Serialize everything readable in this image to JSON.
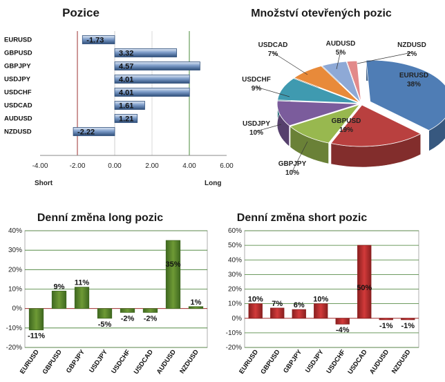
{
  "chart_data": [
    {
      "type": "bar",
      "orientation": "horizontal",
      "title": "Pozice",
      "categories": [
        "EURUSD",
        "GBPUSD",
        "GBPJPY",
        "USDJPY",
        "USDCHF",
        "USDCAD",
        "AUDUSD",
        "NZDUSD"
      ],
      "values": [
        -1.73,
        3.32,
        4.57,
        4.01,
        4.01,
        1.61,
        1.21,
        -2.22
      ],
      "value_labels": [
        "-1.73",
        "3.32",
        "4.57",
        "4.01",
        "4.01",
        "1.61",
        "1.21",
        "-2.22"
      ],
      "xlim": [
        -4,
        6
      ],
      "xticks": [
        "-4.00",
        "-2.00",
        "0.00",
        "2.00",
        "4.00",
        "6.00"
      ],
      "left_label": "Short",
      "right_label": "Long",
      "colors": {
        "bar": "#7d9cc9",
        "bar_dark": "#2f4f7a",
        "line_red": "#9b3030",
        "line_green": "#4a8a3a"
      }
    },
    {
      "type": "pie",
      "title": "Množství otevřených pozic",
      "labels": [
        "EURUSD",
        "GBPUSD",
        "GBPJPY",
        "USDJPY",
        "USDCHF",
        "USDCAD",
        "AUDUSD",
        "NZDUSD"
      ],
      "values": [
        38,
        19,
        10,
        10,
        9,
        7,
        5,
        2
      ],
      "value_labels": [
        "38%",
        "19%",
        "10%",
        "10%",
        "9%",
        "7%",
        "5%",
        "2%"
      ],
      "colors": [
        "#4f7db5",
        "#b9403f",
        "#98b84f",
        "#7b5c9c",
        "#3f9ab0",
        "#e88a3a",
        "#8ea9d6",
        "#e28a8a"
      ]
    },
    {
      "type": "bar",
      "title": "Denní změna long pozic",
      "categories": [
        "EURUSD",
        "GBPUSD",
        "GBPJPY",
        "USDJPY",
        "USDCHF",
        "USDCAD",
        "AUDUSD",
        "NZDUSD"
      ],
      "values": [
        -11,
        9,
        11,
        -5,
        -2,
        -2,
        35,
        1
      ],
      "value_labels": [
        "-11%",
        "9%",
        "11%",
        "-5%",
        "-2%",
        "-2%",
        "35%",
        "1%"
      ],
      "ylim": [
        -20,
        40
      ],
      "yticks": [
        "-20%",
        "-10%",
        "0%",
        "10%",
        "20%",
        "30%",
        "40%"
      ],
      "colors": {
        "bar": "#6e9a35",
        "bar_dark": "#3f6820",
        "grid": "#3d7a2a"
      }
    },
    {
      "type": "bar",
      "title": "Denní změna short pozic",
      "categories": [
        "EURUSD",
        "GBPUSD",
        "GBPJPY",
        "USDJPY",
        "USDCHF",
        "USDCAD",
        "AUDUSD",
        "NZDUSD"
      ],
      "values": [
        10,
        7,
        6,
        10,
        -4,
        50,
        -1,
        -1
      ],
      "value_labels": [
        "10%",
        "7%",
        "6%",
        "10%",
        "-4%",
        "50%",
        "-1%",
        "-1%"
      ],
      "ylim": [
        -20,
        60
      ],
      "yticks": [
        "-20%",
        "-10%",
        "0%",
        "10%",
        "20%",
        "30%",
        "40%",
        "50%",
        "60%"
      ],
      "colors": {
        "bar": "#d23a3a",
        "bar_dark": "#8a1f1f",
        "grid": "#3d7a2a"
      }
    }
  ]
}
